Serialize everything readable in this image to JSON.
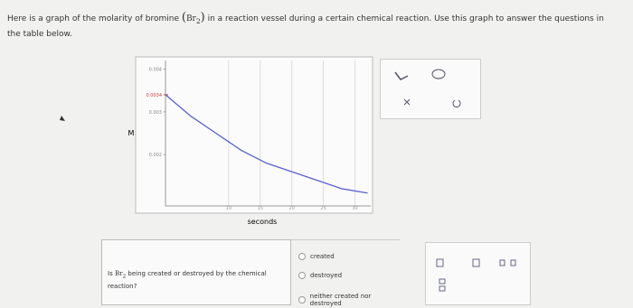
{
  "header": {
    "text_before": "Here is a graph of the molarity of bromine",
    "open": "(",
    "formula": "Br",
    "subscript": "2",
    "close": ")",
    "text_after": "in a reaction vessel during a certain chemical reaction. Use this graph to answer the questions in the table below."
  },
  "chart_data": {
    "type": "line",
    "xlabel": "seconds",
    "ylabel": "M",
    "x": [
      0,
      4,
      8,
      12,
      16,
      20,
      24,
      28,
      32
    ],
    "series": [
      {
        "color": "#5a5fd0",
        "values": [
          0.0034,
          0.0029,
          0.0025,
          0.0021,
          0.0018,
          0.0016,
          0.0014,
          0.0012,
          0.0011
        ]
      }
    ],
    "xlim": [
      0,
      32.5
    ],
    "ylim": [
      0.0008,
      0.0042
    ],
    "xticks": [
      10,
      15,
      20,
      25,
      30
    ],
    "yticks": [
      0.002,
      0.003,
      0.004
    ],
    "annotation": {
      "value": 0.0034,
      "label": "0.0034",
      "color": "#d23b3b"
    },
    "grid": true
  },
  "question": {
    "text_before": "Is",
    "formula": "Br",
    "subscript": "2",
    "text_after": "being created or destroyed by the chemical reaction?",
    "options": [
      "created",
      "destroyed",
      "neither created nor destroyed"
    ]
  }
}
